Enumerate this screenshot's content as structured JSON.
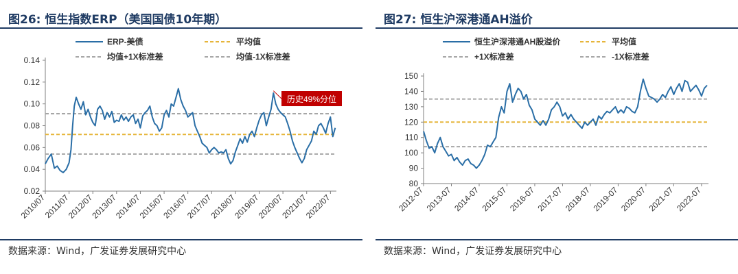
{
  "left": {
    "title": "图26:  恒生指数ERP（美国国债10年期）",
    "source": "数据来源：Wind，广发证券发展研究中心",
    "chart_data": {
      "type": "line",
      "ylim": [
        0.02,
        0.14
      ],
      "yticks": [
        "0.02",
        "0.04",
        "0.06",
        "0.08",
        "0.10",
        "0.12",
        "0.14"
      ],
      "xticks": [
        "2010/07",
        "2011/07",
        "2012/07",
        "2013/07",
        "2014/07",
        "2015/07",
        "2016/07",
        "2017/07",
        "2018/07",
        "2019/07",
        "2020/07",
        "2021/07",
        "2022/07"
      ],
      "x_start": 2010.5,
      "x_end": 2022.75,
      "legend": [
        "ERP-美债",
        "平均值",
        "均值+1X标准差",
        "均值-1X标准差"
      ],
      "series": [
        {
          "name": "ERP-美债",
          "x": [
            2010.5,
            2010.62,
            2010.75,
            2010.88,
            2011.0,
            2011.12,
            2011.25,
            2011.38,
            2011.5,
            2011.58,
            2011.65,
            2011.72,
            2011.8,
            2011.9,
            2012.0,
            2012.1,
            2012.2,
            2012.3,
            2012.4,
            2012.5,
            2012.6,
            2012.7,
            2012.8,
            2012.9,
            2013.0,
            2013.1,
            2013.2,
            2013.3,
            2013.4,
            2013.5,
            2013.6,
            2013.7,
            2013.8,
            2013.9,
            2014.0,
            2014.1,
            2014.2,
            2014.3,
            2014.4,
            2014.5,
            2014.6,
            2014.7,
            2014.8,
            2014.9,
            2015.0,
            2015.1,
            2015.2,
            2015.3,
            2015.4,
            2015.5,
            2015.6,
            2015.7,
            2015.8,
            2015.9,
            2016.0,
            2016.1,
            2016.2,
            2016.3,
            2016.4,
            2016.5,
            2016.6,
            2016.7,
            2016.8,
            2016.9,
            2017.0,
            2017.1,
            2017.2,
            2017.3,
            2017.4,
            2017.5,
            2017.6,
            2017.7,
            2017.8,
            2017.9,
            2018.0,
            2018.1,
            2018.2,
            2018.3,
            2018.4,
            2018.5,
            2018.6,
            2018.7,
            2018.8,
            2018.9,
            2019.0,
            2019.1,
            2019.2,
            2019.3,
            2019.4,
            2019.5,
            2019.6,
            2019.7,
            2019.8,
            2019.9,
            2020.0,
            2020.1,
            2020.2,
            2020.3,
            2020.4,
            2020.5,
            2020.6,
            2020.7,
            2020.8,
            2020.9,
            2021.0,
            2021.1,
            2021.2,
            2021.3,
            2021.4,
            2021.5,
            2021.6,
            2021.7,
            2021.8,
            2021.9,
            2022.0,
            2022.1,
            2022.2,
            2022.3,
            2022.4,
            2022.5,
            2022.6,
            2022.7
          ],
          "values": [
            0.045,
            0.05,
            0.054,
            0.041,
            0.043,
            0.039,
            0.037,
            0.04,
            0.046,
            0.058,
            0.08,
            0.098,
            0.106,
            0.1,
            0.095,
            0.102,
            0.09,
            0.095,
            0.088,
            0.083,
            0.08,
            0.095,
            0.098,
            0.094,
            0.086,
            0.092,
            0.088,
            0.093,
            0.083,
            0.085,
            0.084,
            0.09,
            0.085,
            0.088,
            0.084,
            0.088,
            0.09,
            0.082,
            0.086,
            0.078,
            0.089,
            0.092,
            0.094,
            0.098,
            0.088,
            0.082,
            0.08,
            0.075,
            0.078,
            0.09,
            0.094,
            0.088,
            0.1,
            0.098,
            0.106,
            0.114,
            0.104,
            0.098,
            0.094,
            0.088,
            0.09,
            0.092,
            0.08,
            0.075,
            0.07,
            0.064,
            0.062,
            0.06,
            0.055,
            0.058,
            0.06,
            0.058,
            0.055,
            0.056,
            0.055,
            0.058,
            0.05,
            0.045,
            0.048,
            0.056,
            0.062,
            0.068,
            0.064,
            0.07,
            0.065,
            0.072,
            0.075,
            0.07,
            0.078,
            0.085,
            0.09,
            0.092,
            0.08,
            0.088,
            0.095,
            0.11,
            0.1,
            0.095,
            0.092,
            0.09,
            0.088,
            0.082,
            0.075,
            0.066,
            0.06,
            0.055,
            0.05,
            0.046,
            0.05,
            0.058,
            0.062,
            0.066,
            0.075,
            0.072,
            0.08,
            0.082,
            0.078,
            0.073,
            0.082,
            0.088,
            0.07,
            0.078
          ]
        },
        {
          "name": "平均值",
          "value": 0.072
        },
        {
          "name": "均值+1X标准差",
          "value": 0.091
        },
        {
          "name": "均值-1X标准差",
          "value": 0.054
        }
      ],
      "annotation": "历史49%分位"
    }
  },
  "right": {
    "title": "图27:  恒生沪深港通AH溢价",
    "source": "数据来源：Wind，广发证券发展研究中心",
    "chart_data": {
      "type": "line",
      "ylim": [
        80,
        150
      ],
      "yticks": [
        "80",
        "90",
        "100",
        "110",
        "120",
        "130",
        "140",
        "150"
      ],
      "xticks": [
        "2012-07",
        "2013-07",
        "2014-07",
        "2015-07",
        "2016-07",
        "2017-07",
        "2018-07",
        "2019-07",
        "2020-07",
        "2021-07",
        "2022-07"
      ],
      "x_start": 2012.5,
      "x_end": 2022.75,
      "legend": [
        "恒生沪深港通AH股溢价",
        "平均值",
        "+1X标准差",
        "-1X标准差"
      ],
      "series": [
        {
          "name": "恒生沪深港通AH股溢价",
          "x": [
            2012.5,
            2012.6,
            2012.7,
            2012.8,
            2012.9,
            2013.0,
            2013.1,
            2013.2,
            2013.3,
            2013.4,
            2013.5,
            2013.6,
            2013.7,
            2013.8,
            2013.9,
            2014.0,
            2014.1,
            2014.2,
            2014.3,
            2014.4,
            2014.5,
            2014.6,
            2014.7,
            2014.8,
            2014.9,
            2015.0,
            2015.1,
            2015.2,
            2015.3,
            2015.4,
            2015.5,
            2015.6,
            2015.7,
            2015.8,
            2015.9,
            2016.0,
            2016.1,
            2016.2,
            2016.3,
            2016.4,
            2016.5,
            2016.6,
            2016.7,
            2016.8,
            2016.9,
            2017.0,
            2017.1,
            2017.2,
            2017.3,
            2017.4,
            2017.5,
            2017.6,
            2017.7,
            2017.8,
            2017.9,
            2018.0,
            2018.1,
            2018.2,
            2018.3,
            2018.4,
            2018.5,
            2018.6,
            2018.7,
            2018.8,
            2018.9,
            2019.0,
            2019.1,
            2019.2,
            2019.3,
            2019.4,
            2019.5,
            2019.6,
            2019.7,
            2019.8,
            2019.9,
            2020.0,
            2020.1,
            2020.2,
            2020.3,
            2020.4,
            2020.5,
            2020.6,
            2020.7,
            2020.8,
            2020.9,
            2021.0,
            2021.1,
            2021.2,
            2021.3,
            2021.4,
            2021.5,
            2021.6,
            2021.7,
            2021.8,
            2021.9,
            2022.0,
            2022.1,
            2022.2,
            2022.3,
            2022.4,
            2022.5,
            2022.6,
            2022.7
          ],
          "values": [
            114,
            108,
            103,
            104,
            100,
            106,
            110,
            104,
            101,
            98,
            99,
            95,
            97,
            94,
            92,
            95,
            96,
            93,
            92,
            90,
            92,
            95,
            99,
            105,
            104,
            107,
            110,
            123,
            130,
            126,
            140,
            145,
            133,
            138,
            142,
            140,
            135,
            138,
            131,
            128,
            122,
            120,
            118,
            121,
            118,
            122,
            128,
            130,
            133,
            130,
            124,
            126,
            122,
            125,
            122,
            120,
            118,
            116,
            120,
            118,
            120,
            122,
            118,
            124,
            122,
            125,
            127,
            126,
            128,
            130,
            126,
            128,
            126,
            130,
            129,
            127,
            126,
            130,
            140,
            148,
            142,
            137,
            136,
            135,
            133,
            135,
            138,
            136,
            140,
            143,
            138,
            142,
            145,
            140,
            147,
            146,
            140,
            142,
            144,
            141,
            137,
            142,
            144
          ]
        },
        {
          "name": "平均值",
          "value": 120
        },
        {
          "name": "+1X标准差",
          "value": 135
        },
        {
          "name": "-1X标准差",
          "value": 104
        }
      ]
    }
  },
  "colors": {
    "series": "#2a6ea6",
    "mean": "#e6b53a",
    "band": "#a6a6a6",
    "annotation_bg": "#c00000",
    "annotation_text": "#ffffff",
    "title": "#1f3b63"
  }
}
